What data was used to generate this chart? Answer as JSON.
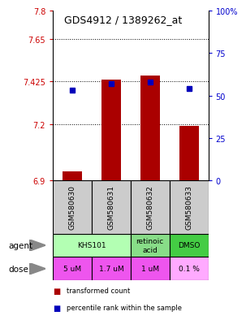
{
  "title": "GDS4912 / 1389262_at",
  "samples": [
    "GSM580630",
    "GSM580631",
    "GSM580632",
    "GSM580633"
  ],
  "red_values": [
    6.95,
    7.435,
    7.455,
    7.19
  ],
  "blue_values": [
    53,
    57,
    58,
    54
  ],
  "ylim_left": [
    6.9,
    7.8
  ],
  "ylim_right": [
    0,
    100
  ],
  "yticks_left": [
    6.9,
    7.2,
    7.425,
    7.65,
    7.8
  ],
  "ytick_labels_left": [
    "6.9",
    "7.2",
    "7.425",
    "7.65",
    "7.8"
  ],
  "yticks_right": [
    0,
    25,
    50,
    75,
    100
  ],
  "ytick_labels_right": [
    "0",
    "25",
    "50",
    "75",
    "100%"
  ],
  "hlines": [
    7.2,
    7.425,
    7.65
  ],
  "agent_groups": [
    {
      "cols": [
        0,
        1
      ],
      "label": "KHS101",
      "color": "#b3ffb3"
    },
    {
      "cols": [
        2
      ],
      "label": "retinoic\nacid",
      "color": "#88dd88"
    },
    {
      "cols": [
        3
      ],
      "label": "DMSO",
      "color": "#44cc44"
    }
  ],
  "dose_labels": [
    "5 uM",
    "1.7 uM",
    "1 uM",
    "0.1 %"
  ],
  "dose_colors": [
    "#ee55ee",
    "#ee55ee",
    "#ee55ee",
    "#ffaaff"
  ],
  "sample_color": "#cccccc",
  "bar_color": "#aa0000",
  "dot_color": "#0000bb",
  "legend_red": "transformed count",
  "legend_blue": "percentile rank within the sample",
  "bar_width": 0.5
}
